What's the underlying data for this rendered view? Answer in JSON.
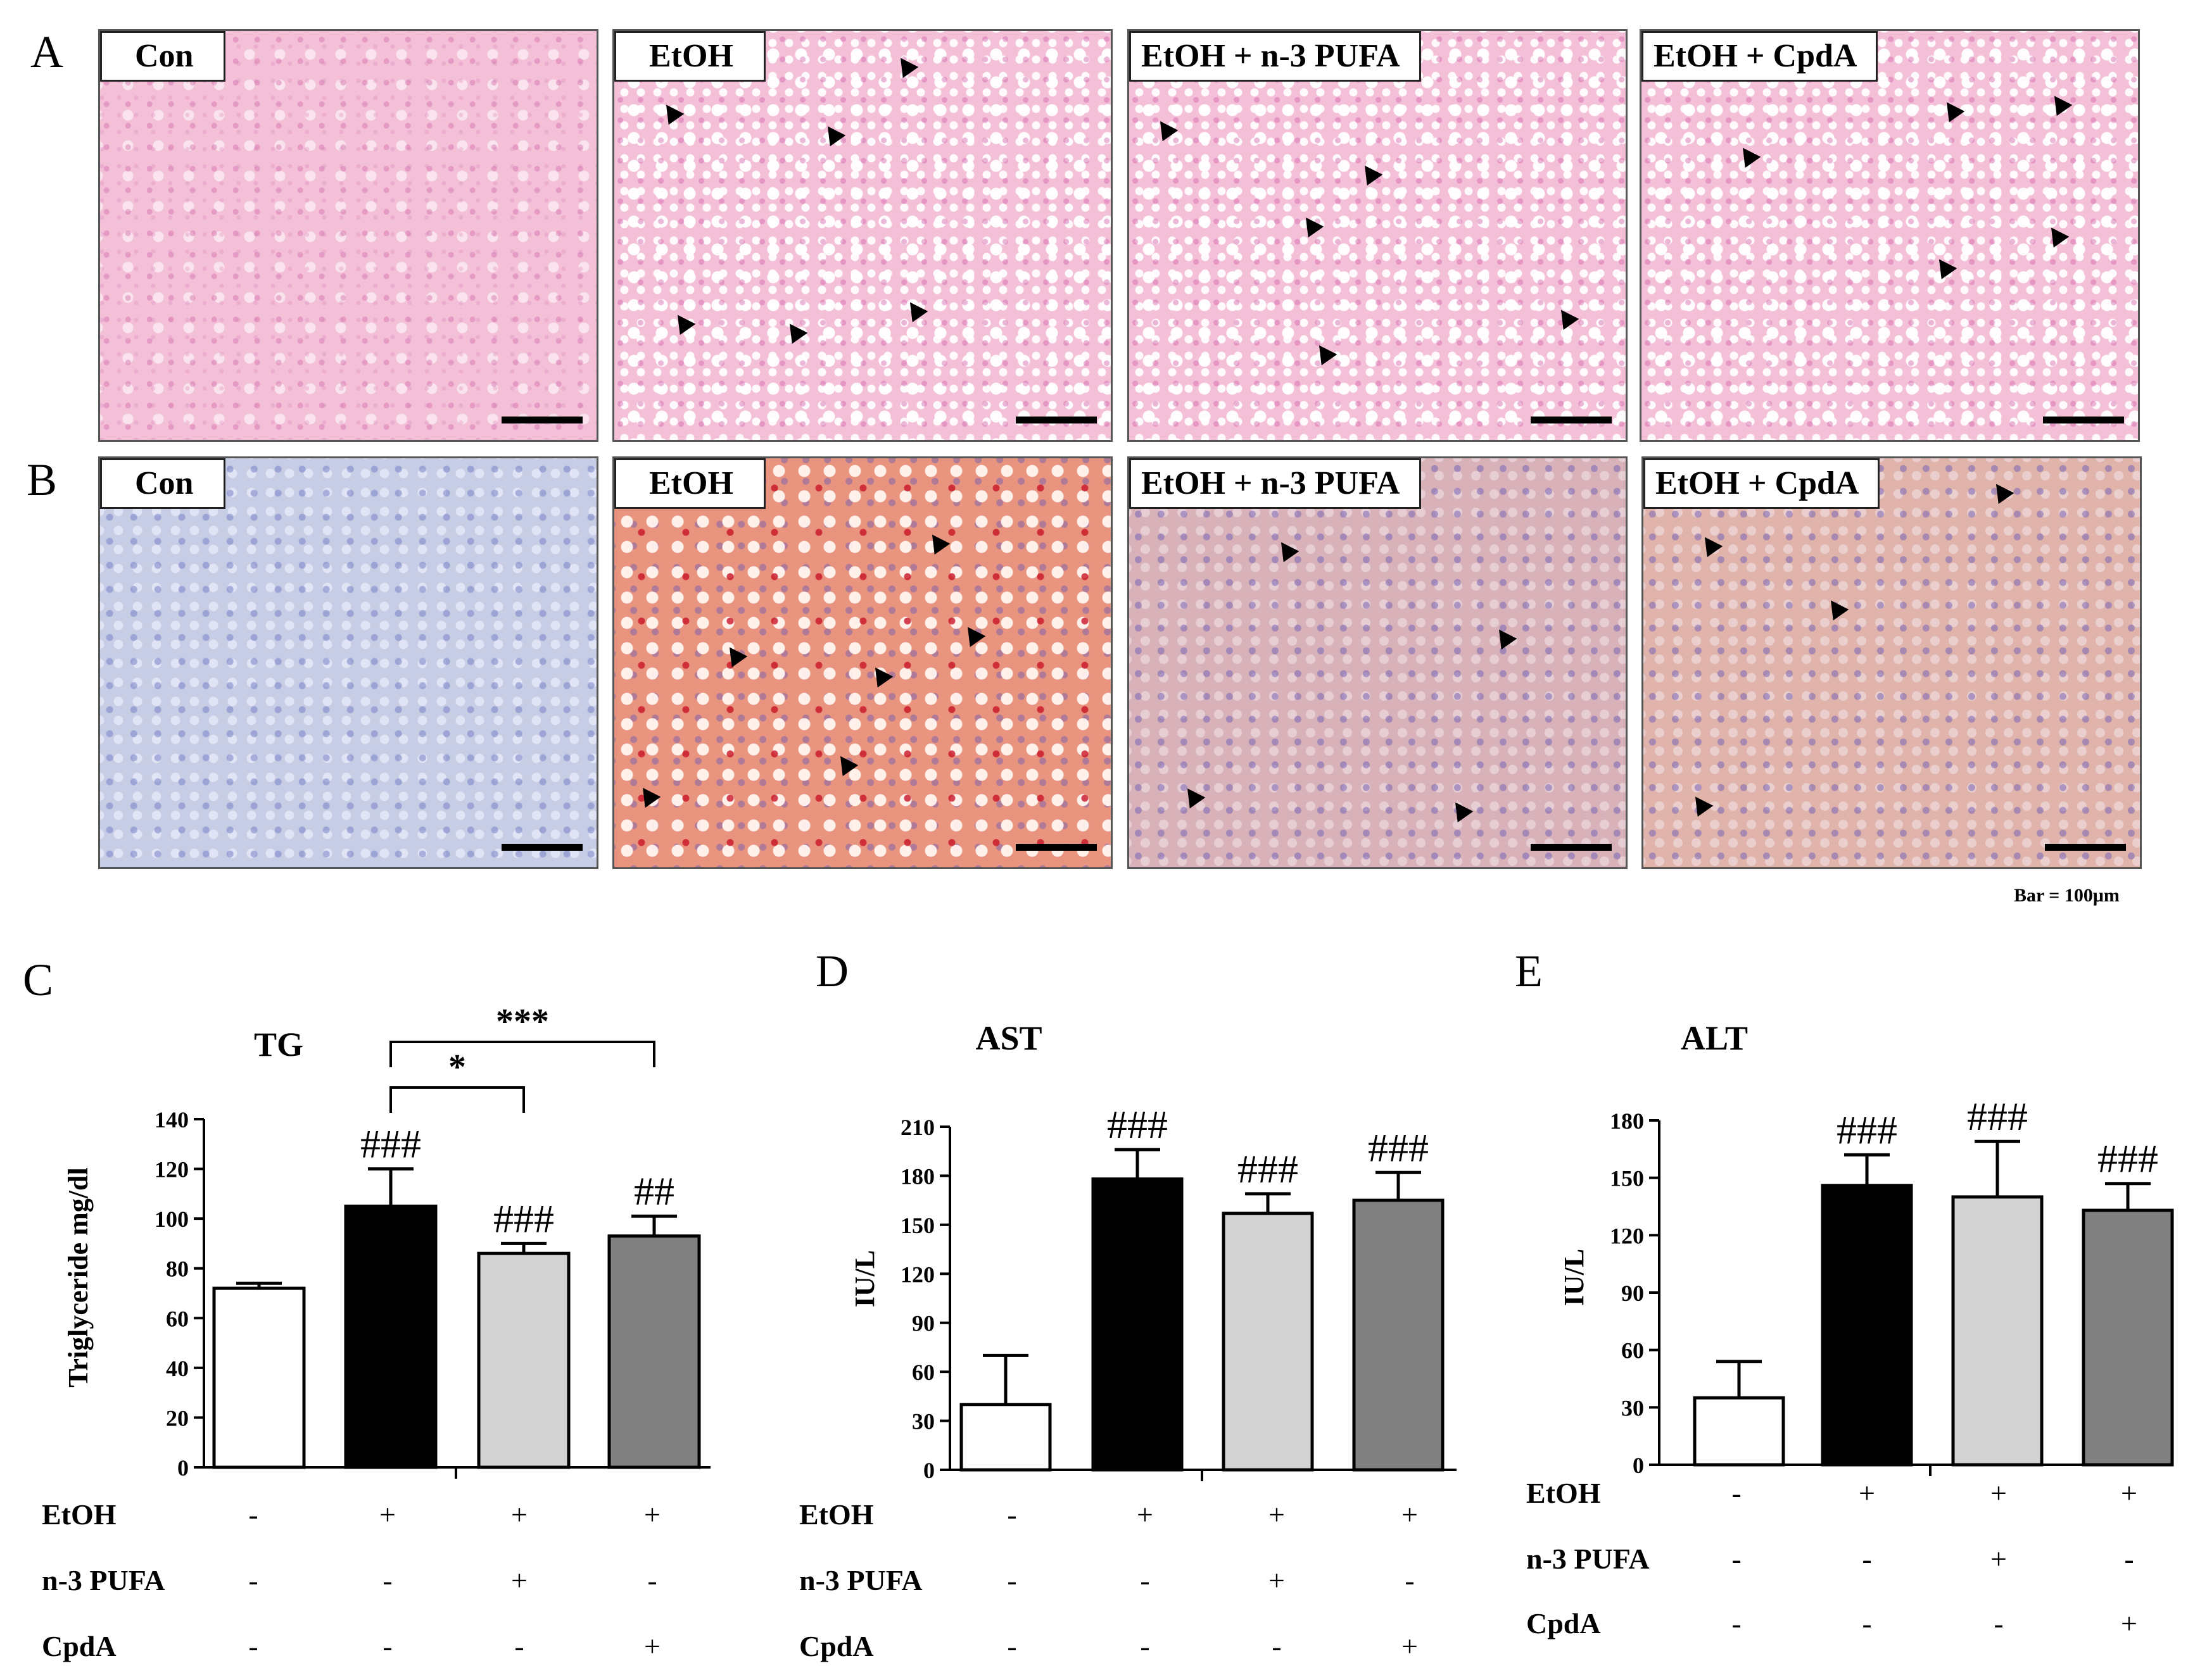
{
  "panel_letters": {
    "a": "A",
    "b": "B",
    "c": "C",
    "d": "D",
    "e": "E"
  },
  "he_row": [
    {
      "label": "Con"
    },
    {
      "label": "EtOH"
    },
    {
      "label": "EtOH + n-3 PUFA"
    },
    {
      "label": "EtOH + CpdA"
    }
  ],
  "oro_row": [
    {
      "label": "Con"
    },
    {
      "label": "EtOH"
    },
    {
      "label": "EtOH + n-3 PUFA"
    },
    {
      "label": "EtOH + CpdA"
    }
  ],
  "scale_note": "Bar = 100μm",
  "colors": {
    "con_bar": "#ffffff",
    "etoh_bar": "#000000",
    "pufa_bar": "#d3d3d3",
    "cpda_bar": "#808080"
  },
  "treatment_rows": [
    "EtOH",
    "n-3 PUFA",
    "CpdA"
  ],
  "chart_data": [
    {
      "type": "bar",
      "panel": "C",
      "title": "TG",
      "ylabel": "Triglyceride mg/dl",
      "ylim": [
        0,
        140
      ],
      "yticks": [
        "0",
        "20",
        "40",
        "60",
        "80",
        "100",
        "120",
        "140"
      ],
      "values": [
        72,
        105,
        86,
        93
      ],
      "errors": [
        2,
        15,
        4,
        8
      ],
      "sig_labels": [
        "",
        "###",
        "###",
        "##"
      ],
      "brackets": [
        {
          "from": 1,
          "to": 2,
          "label": "*"
        },
        {
          "from": 1,
          "to": 3,
          "label": "***"
        }
      ],
      "treatments": {
        "EtOH": [
          "-",
          "+",
          "+",
          "+"
        ],
        "n-3 PUFA": [
          "-",
          "-",
          "+",
          "-"
        ],
        "CpdA": [
          "-",
          "-",
          "-",
          "+"
        ]
      }
    },
    {
      "type": "bar",
      "panel": "D",
      "title": "AST",
      "ylabel": "IU/L",
      "ylim": [
        0,
        210
      ],
      "yticks": [
        "0",
        "30",
        "60",
        "90",
        "120",
        "150",
        "180",
        "210"
      ],
      "values": [
        40,
        178,
        157,
        165
      ],
      "errors": [
        30,
        18,
        12,
        17
      ],
      "sig_labels": [
        "",
        "###",
        "###",
        "###"
      ],
      "brackets": [],
      "treatments": {
        "EtOH": [
          "-",
          "+",
          "+",
          "+"
        ],
        "n-3 PUFA": [
          "-",
          "-",
          "+",
          "-"
        ],
        "CpdA": [
          "-",
          "-",
          "-",
          "+"
        ]
      }
    },
    {
      "type": "bar",
      "panel": "E",
      "title": "ALT",
      "ylabel": "IU/L",
      "ylim": [
        0,
        180
      ],
      "yticks": [
        "0",
        "30",
        "60",
        "90",
        "120",
        "150",
        "180"
      ],
      "values": [
        35,
        146,
        140,
        133
      ],
      "errors": [
        19,
        16,
        29,
        14
      ],
      "sig_labels": [
        "",
        "###",
        "###",
        "###"
      ],
      "brackets": [],
      "treatments": {
        "EtOH": [
          "-",
          "+",
          "+",
          "+"
        ],
        "n-3 PUFA": [
          "-",
          "-",
          "+",
          "-"
        ],
        "CpdA": [
          "-",
          "-",
          "-",
          "+"
        ]
      }
    }
  ]
}
